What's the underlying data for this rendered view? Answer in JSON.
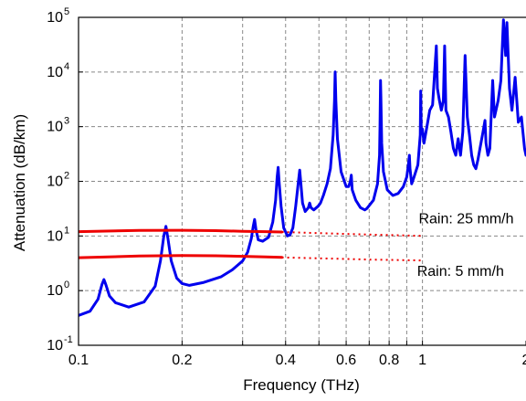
{
  "chart_data": {
    "type": "line",
    "xlabel": "Frequency (THz)",
    "ylabel": "Attenuation (dB/km)",
    "xscale": "log",
    "yscale": "log",
    "xlim": [
      0.1,
      2
    ],
    "ylim": [
      0.1,
      100000
    ],
    "grid": true,
    "x_ticks": [
      {
        "value": 0.1,
        "label": "0.1"
      },
      {
        "value": 0.2,
        "label": "0.2"
      },
      {
        "value": 0.3,
        "label": ""
      },
      {
        "value": 0.4,
        "label": "0.4"
      },
      {
        "value": 0.5,
        "label": ""
      },
      {
        "value": 0.6,
        "label": "0.6"
      },
      {
        "value": 0.7,
        "label": ""
      },
      {
        "value": 0.8,
        "label": "0.8"
      },
      {
        "value": 0.9,
        "label": ""
      },
      {
        "value": 1,
        "label": "1"
      },
      {
        "value": 2,
        "label": "2"
      }
    ],
    "y_ticks": [
      {
        "value": 0.1,
        "base": "10",
        "exp": "-1"
      },
      {
        "value": 1,
        "base": "10",
        "exp": "0"
      },
      {
        "value": 10,
        "base": "10",
        "exp": "1"
      },
      {
        "value": 100,
        "base": "10",
        "exp": "2"
      },
      {
        "value": 1000,
        "base": "10",
        "exp": "3"
      },
      {
        "value": 10000,
        "base": "10",
        "exp": "4"
      },
      {
        "value": 100000,
        "base": "10",
        "exp": "5"
      }
    ],
    "series": [
      {
        "color": "#0000ee",
        "style": "solid",
        "points": [
          [
            0.1,
            0.35
          ],
          [
            0.108,
            0.42
          ],
          [
            0.114,
            0.7
          ],
          [
            0.117,
            1.3
          ],
          [
            0.1185,
            1.6
          ],
          [
            0.12,
            1.3
          ],
          [
            0.123,
            0.8
          ],
          [
            0.128,
            0.6
          ],
          [
            0.14,
            0.5
          ],
          [
            0.155,
            0.62
          ],
          [
            0.167,
            1.2
          ],
          [
            0.173,
            3.5
          ],
          [
            0.177,
            10
          ],
          [
            0.1795,
            15
          ],
          [
            0.182,
            9
          ],
          [
            0.186,
            3.5
          ],
          [
            0.193,
            1.7
          ],
          [
            0.2,
            1.35
          ],
          [
            0.21,
            1.25
          ],
          [
            0.23,
            1.4
          ],
          [
            0.26,
            1.8
          ],
          [
            0.28,
            2.4
          ],
          [
            0.3,
            3.5
          ],
          [
            0.31,
            5
          ],
          [
            0.318,
            9
          ],
          [
            0.322,
            15
          ],
          [
            0.325,
            20
          ],
          [
            0.328,
            13
          ],
          [
            0.333,
            8.5
          ],
          [
            0.343,
            8
          ],
          [
            0.357,
            9.5
          ],
          [
            0.367,
            18
          ],
          [
            0.374,
            45
          ],
          [
            0.378,
            120
          ],
          [
            0.3805,
            180
          ],
          [
            0.383,
            100
          ],
          [
            0.388,
            35
          ],
          [
            0.395,
            14
          ],
          [
            0.405,
            10
          ],
          [
            0.412,
            10.5
          ],
          [
            0.42,
            14
          ],
          [
            0.428,
            35
          ],
          [
            0.436,
            100
          ],
          [
            0.4395,
            160
          ],
          [
            0.443,
            90
          ],
          [
            0.448,
            40
          ],
          [
            0.456,
            28
          ],
          [
            0.466,
            33
          ],
          [
            0.47,
            40
          ],
          [
            0.474,
            33
          ],
          [
            0.483,
            30
          ],
          [
            0.497,
            35
          ],
          [
            0.505,
            40
          ],
          [
            0.515,
            55
          ],
          [
            0.528,
            90
          ],
          [
            0.54,
            170
          ],
          [
            0.55,
            700
          ],
          [
            0.555,
            3000
          ],
          [
            0.5573,
            10000
          ],
          [
            0.56,
            3000
          ],
          [
            0.566,
            600
          ],
          [
            0.58,
            150
          ],
          [
            0.6,
            80
          ],
          [
            0.61,
            80
          ],
          [
            0.617,
            100
          ],
          [
            0.621,
            130
          ],
          [
            0.625,
            70
          ],
          [
            0.64,
            45
          ],
          [
            0.66,
            33
          ],
          [
            0.68,
            30
          ],
          [
            0.69,
            32
          ],
          [
            0.72,
            45
          ],
          [
            0.74,
            90
          ],
          [
            0.75,
            300
          ],
          [
            0.7525,
            1000
          ],
          [
            0.755,
            7000
          ],
          [
            0.7572,
            3500
          ],
          [
            0.761,
            500
          ],
          [
            0.77,
            150
          ],
          [
            0.79,
            70
          ],
          [
            0.82,
            55
          ],
          [
            0.85,
            60
          ],
          [
            0.88,
            80
          ],
          [
            0.9,
            120
          ],
          [
            0.91,
            200
          ],
          [
            0.916,
            300
          ],
          [
            0.92,
            170
          ],
          [
            0.93,
            90
          ],
          [
            0.945,
            120
          ],
          [
            0.97,
            200
          ],
          [
            0.985,
            700
          ],
          [
            0.988,
            4500
          ],
          [
            0.992,
            900
          ],
          [
            1.0,
            900
          ],
          [
            1.01,
            500
          ],
          [
            1.03,
            1000
          ],
          [
            1.05,
            2000
          ],
          [
            1.07,
            2500
          ],
          [
            1.085,
            10000
          ],
          [
            1.097,
            30000
          ],
          [
            1.105,
            5000
          ],
          [
            1.12,
            3000
          ],
          [
            1.135,
            2000
          ],
          [
            1.15,
            3000
          ],
          [
            1.16,
            30000
          ],
          [
            1.17,
            2000
          ],
          [
            1.19,
            1500
          ],
          [
            1.21,
            800
          ],
          [
            1.23,
            400
          ],
          [
            1.25,
            300
          ],
          [
            1.27,
            600
          ],
          [
            1.29,
            300
          ],
          [
            1.31,
            800
          ],
          [
            1.33,
            20000
          ],
          [
            1.35,
            1500
          ],
          [
            1.37,
            700
          ],
          [
            1.39,
            300
          ],
          [
            1.41,
            200
          ],
          [
            1.43,
            170
          ],
          [
            1.45,
            250
          ],
          [
            1.47,
            400
          ],
          [
            1.5,
            800
          ],
          [
            1.52,
            1300
          ],
          [
            1.53,
            500
          ],
          [
            1.55,
            300
          ],
          [
            1.57,
            400
          ],
          [
            1.6,
            7000
          ],
          [
            1.62,
            1500
          ],
          [
            1.66,
            3000
          ],
          [
            1.69,
            7000
          ],
          [
            1.72,
            90000
          ],
          [
            1.745,
            20000
          ],
          [
            1.76,
            80000
          ],
          [
            1.79,
            5000
          ],
          [
            1.82,
            2000
          ],
          [
            1.86,
            8000
          ],
          [
            1.9,
            1200
          ],
          [
            1.94,
            1500
          ],
          [
            1.98,
            400
          ],
          [
            2.0,
            300
          ]
        ]
      },
      {
        "color": "#ee0000",
        "style": "solid",
        "points": [
          [
            0.1,
            12
          ],
          [
            0.15,
            12.6
          ],
          [
            0.2,
            12.7
          ],
          [
            0.25,
            12.5
          ],
          [
            0.3,
            12.2
          ],
          [
            0.35,
            12.0
          ],
          [
            0.39,
            11.8
          ]
        ]
      },
      {
        "color": "#ee0000",
        "style": "dotted",
        "points": [
          [
            0.39,
            11.8
          ],
          [
            0.5,
            11.3
          ],
          [
            0.6,
            10.9
          ],
          [
            0.7,
            10.6
          ],
          [
            0.8,
            10.4
          ],
          [
            0.9,
            10.2
          ],
          [
            1.0,
            10.0
          ]
        ]
      },
      {
        "color": "#ee0000",
        "style": "solid",
        "points": [
          [
            0.1,
            4.0
          ],
          [
            0.15,
            4.3
          ],
          [
            0.2,
            4.4
          ],
          [
            0.25,
            4.35
          ],
          [
            0.3,
            4.25
          ],
          [
            0.35,
            4.15
          ],
          [
            0.39,
            4.05
          ]
        ]
      },
      {
        "color": "#ee0000",
        "style": "dotted",
        "points": [
          [
            0.39,
            4.05
          ],
          [
            0.5,
            3.9
          ],
          [
            0.6,
            3.8
          ],
          [
            0.7,
            3.7
          ],
          [
            0.8,
            3.65
          ],
          [
            0.9,
            3.6
          ],
          [
            1.0,
            3.55
          ]
        ]
      }
    ],
    "annotations": [
      {
        "text": "Rain: 25 mm/h",
        "x": 1.34,
        "y": 17
      },
      {
        "text": "Rain: 5 mm/h",
        "x": 1.29,
        "y": 1.85
      }
    ]
  }
}
